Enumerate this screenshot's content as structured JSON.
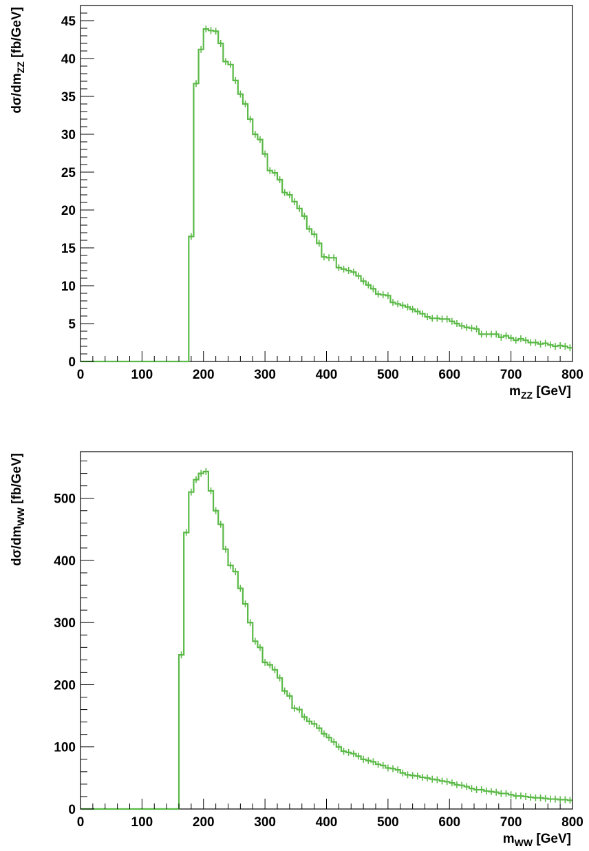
{
  "colors": {
    "histogram": "#5ab946",
    "axis": "#000000",
    "background": "#ffffff"
  },
  "chart_data": [
    {
      "type": "histogram",
      "xlabel": {
        "base": "m",
        "sub": "ZZ",
        "unit": " [GeV]"
      },
      "ylabel": {
        "base": "dσ/dm",
        "sub": "ZZ",
        "unit": " [fb/GeV]"
      },
      "xlim": [
        0,
        800
      ],
      "ylim": [
        0,
        47
      ],
      "x_ticks": [
        0,
        100,
        200,
        300,
        400,
        500,
        600,
        700,
        800
      ],
      "x_tick_labels": [
        "0",
        "100",
        "200",
        "300",
        "400",
        "500",
        "600",
        "700",
        "800"
      ],
      "y_ticks": [
        0,
        5,
        10,
        15,
        20,
        25,
        30,
        35,
        40,
        45
      ],
      "y_tick_labels": [
        "0",
        "5",
        "10",
        "15",
        "20",
        "25",
        "30",
        "35",
        "40",
        "45"
      ],
      "grid": false,
      "legend": "none",
      "bin_width": 8,
      "bin_edges_start": 0,
      "values": [
        0,
        0,
        0,
        0,
        0,
        0,
        0,
        0,
        0,
        0,
        0,
        0,
        0,
        0,
        0,
        0,
        0,
        0,
        0,
        0,
        0,
        0,
        16.5,
        36.7,
        41.2,
        43.9,
        43.7,
        43.6,
        42,
        39.6,
        39.2,
        37.1,
        35.3,
        34,
        32,
        30,
        29.3,
        27.4,
        25.2,
        24.9,
        24,
        22.3,
        22,
        21.1,
        20.2,
        19.2,
        17.5,
        16.8,
        15.6,
        13.8,
        13.7,
        13.7,
        12.4,
        12.2,
        12,
        11.8,
        11.3,
        10.6,
        10.1,
        9.6,
        8.9,
        8.8,
        8.7,
        7.8,
        7.6,
        7.4,
        7.2,
        6.9,
        6.6,
        6.3,
        5.9,
        5.7,
        5.7,
        5.6,
        5.6,
        5.3,
        5,
        4.7,
        4.5,
        4.4,
        4.3,
        3.6,
        3.6,
        3.6,
        3.6,
        3.2,
        3.4,
        3.1,
        2.8,
        3,
        2.8,
        2.5,
        2.5,
        2.3,
        2.4,
        2.2,
        2,
        2.1,
        2,
        1.8
      ]
    },
    {
      "type": "histogram",
      "xlabel": {
        "base": "m",
        "sub": "WW",
        "unit": " [GeV]"
      },
      "ylabel": {
        "base": "dσ/dm",
        "sub": "WW",
        "unit": " [fb/GeV]"
      },
      "xlim": [
        0,
        800
      ],
      "ylim": [
        0,
        575
      ],
      "x_ticks": [
        0,
        100,
        200,
        300,
        400,
        500,
        600,
        700,
        800
      ],
      "x_tick_labels": [
        "0",
        "100",
        "200",
        "300",
        "400",
        "500",
        "600",
        "700",
        "800"
      ],
      "y_ticks": [
        0,
        100,
        200,
        300,
        400,
        500
      ],
      "y_tick_labels": [
        "0",
        "100",
        "200",
        "300",
        "400",
        "500"
      ],
      "grid": false,
      "legend": "none",
      "bin_width": 8,
      "bin_edges_start": 0,
      "values": [
        0,
        0,
        0,
        0,
        0,
        0,
        0,
        0,
        0,
        0,
        0,
        0,
        0,
        0,
        0,
        0,
        0,
        0,
        0,
        0,
        248,
        445,
        510,
        530,
        540,
        543,
        512,
        480,
        458,
        418,
        392,
        382,
        355,
        330,
        300,
        270,
        260,
        236,
        232,
        224,
        211,
        190,
        182,
        162,
        160,
        148,
        141,
        137,
        130,
        121,
        115,
        108,
        100,
        93,
        91,
        89,
        85,
        80,
        78,
        76,
        72,
        70,
        66,
        65,
        63,
        58,
        55,
        54,
        53,
        51,
        50,
        48,
        47,
        45,
        44,
        42,
        39,
        38,
        36,
        33,
        31,
        31,
        29,
        28,
        27,
        25,
        25,
        23,
        21,
        21,
        20,
        19,
        18,
        18,
        17,
        16,
        16,
        15,
        15,
        14
      ]
    }
  ]
}
